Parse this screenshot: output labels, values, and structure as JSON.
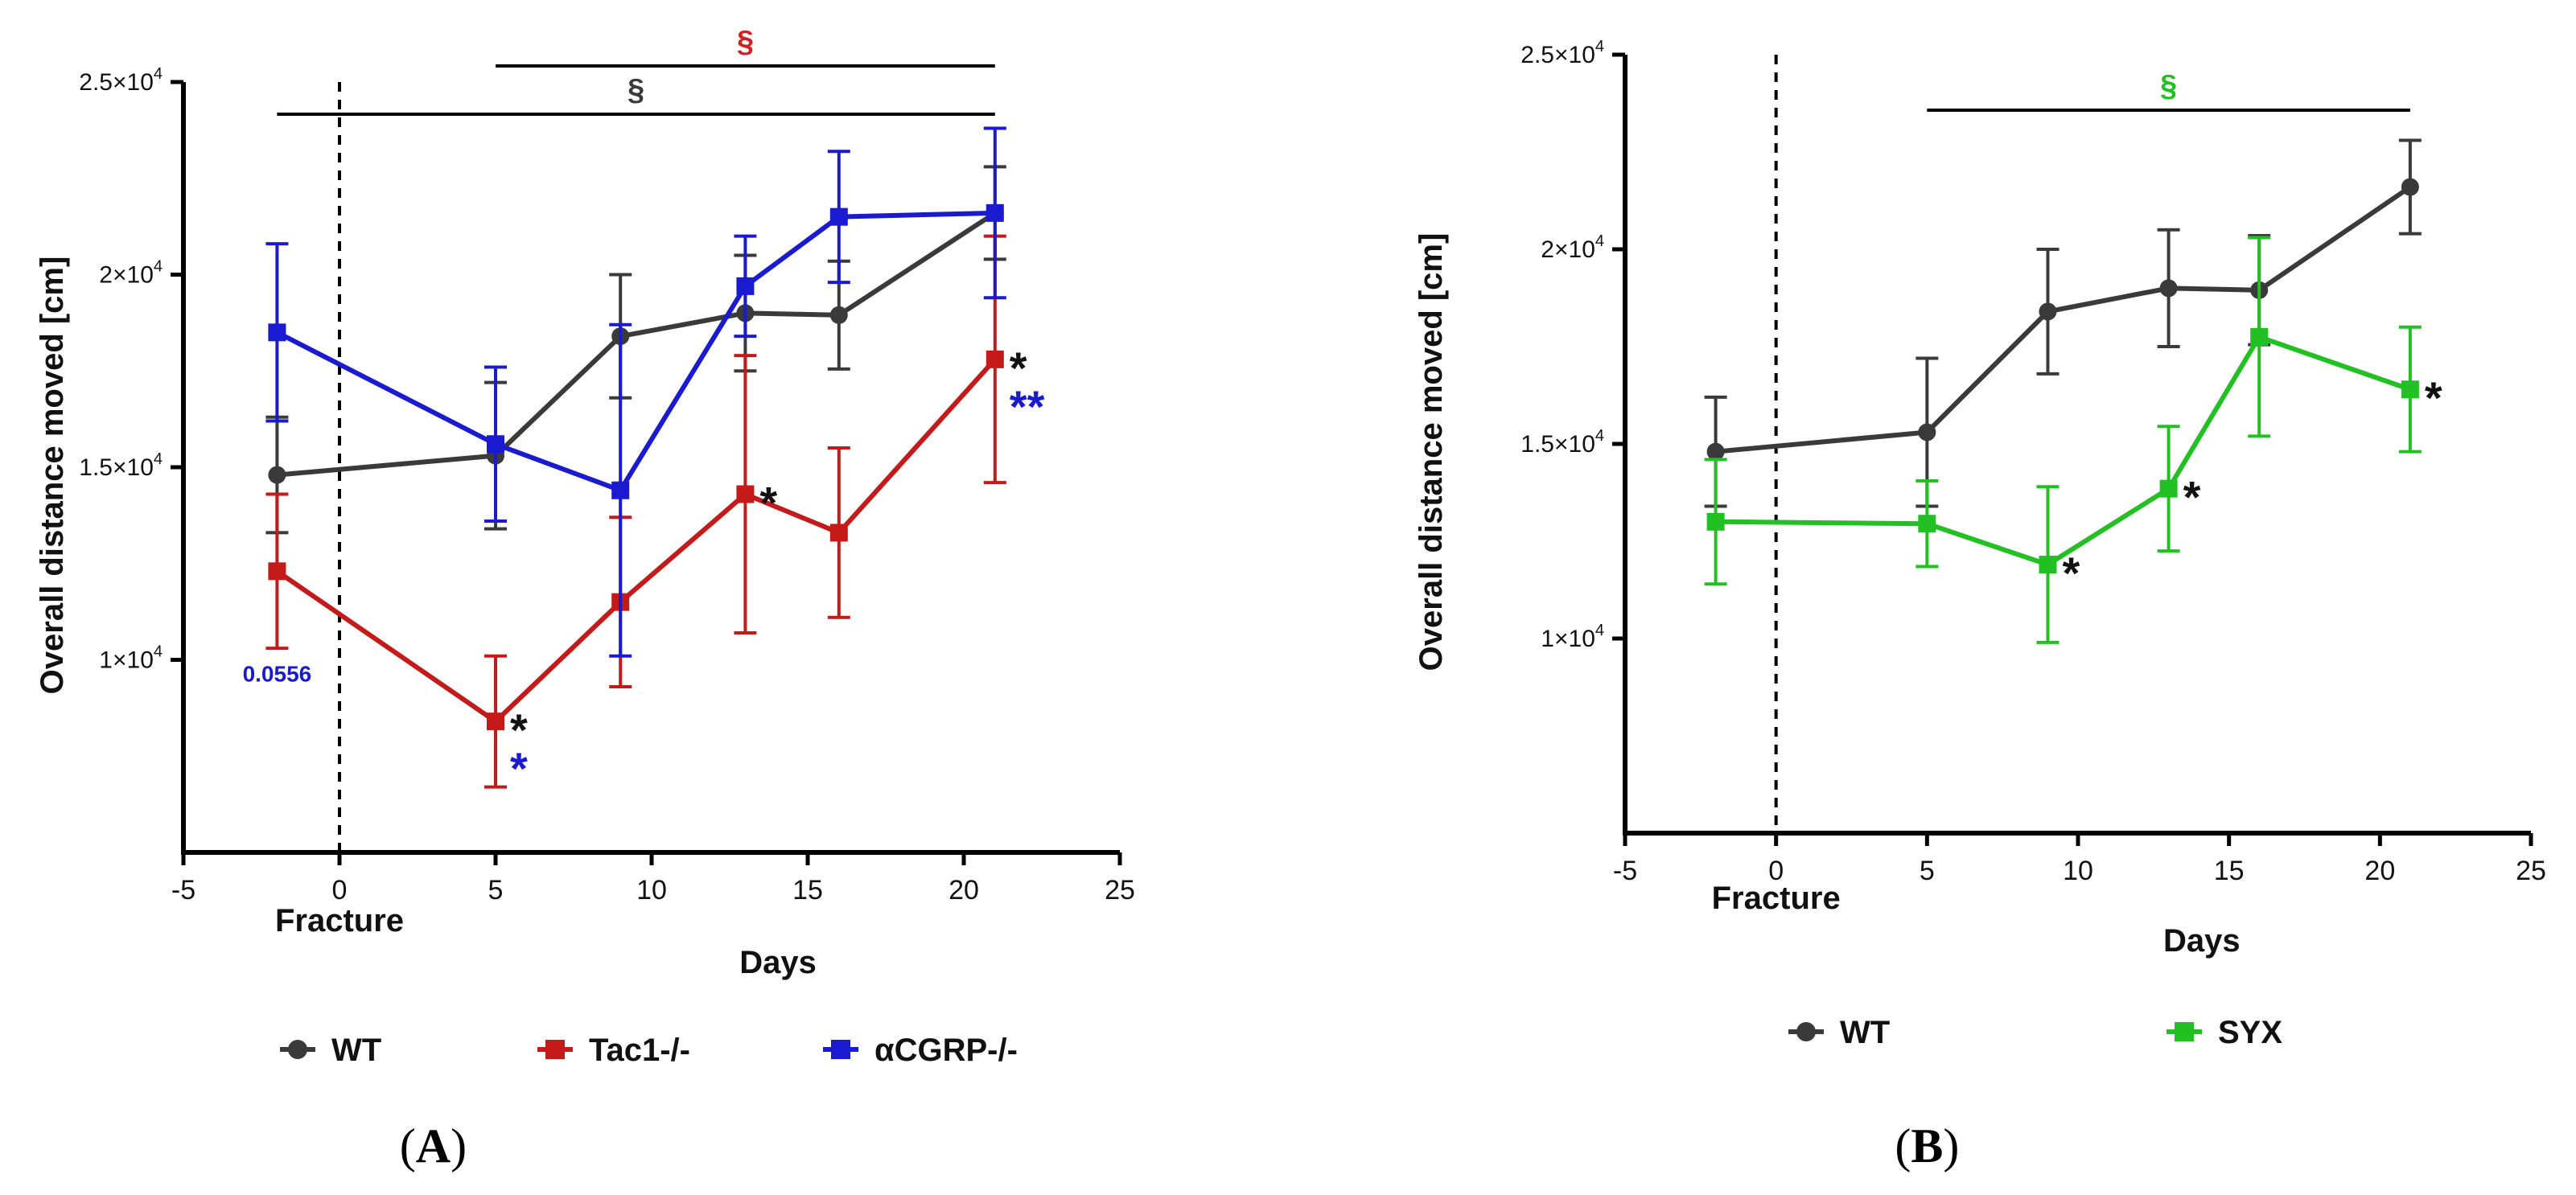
{
  "chart_data": [
    {
      "type": "line",
      "panel_label": "(A)",
      "panel_letter": "A",
      "xlabel": "Days",
      "ylabel": "Overall distance moved [cm]",
      "fracture_label": "Fracture",
      "xlim": [
        -5,
        25
      ],
      "ylim": [
        5000,
        25000
      ],
      "x_ticks": [
        -5,
        0,
        5,
        10,
        15,
        20,
        25
      ],
      "y_ticks": [
        {
          "value": 10000,
          "mantissa": "1",
          "exponent": "4"
        },
        {
          "value": 15000,
          "mantissa": "1.5",
          "exponent": "4"
        },
        {
          "value": 20000,
          "mantissa": "2",
          "exponent": "4"
        },
        {
          "value": 25000,
          "mantissa": "2.5",
          "exponent": "4"
        }
      ],
      "series": [
        {
          "name": "WT",
          "color": "#3a3a3a",
          "marker": "circle",
          "x": [
            -2,
            5,
            9,
            13,
            16,
            21
          ],
          "y": [
            14800,
            15300,
            18400,
            19000,
            18950,
            21600
          ],
          "err": [
            1500,
            1900,
            1600,
            1500,
            1400,
            1200
          ]
        },
        {
          "name": "Tac1-/-",
          "color": "#c41a1a",
          "marker": "square",
          "x": [
            -2,
            5,
            9,
            13,
            16,
            21
          ],
          "y": [
            12300,
            8400,
            11500,
            14300,
            13300,
            17800
          ],
          "err": [
            2000,
            1700,
            2200,
            3600,
            2200,
            3200
          ]
        },
        {
          "name": "αCGRP-/-",
          "color": "#1a1ad0",
          "marker": "square",
          "x": [
            -2,
            5,
            9,
            13,
            16,
            21
          ],
          "y": [
            18500,
            15600,
            14400,
            19700,
            21500,
            21600
          ],
          "err": [
            2300,
            2000,
            4300,
            1300,
            1700,
            2200
          ]
        }
      ],
      "significance_bars": [
        {
          "from": 5,
          "to": 21,
          "symbol": "§",
          "color": "#d32020"
        },
        {
          "from": -2,
          "to": 21,
          "symbol": "§",
          "color": "#3a3a3a"
        }
      ],
      "annotations": [
        {
          "text": "0.0556",
          "x": -2,
          "y": 9650,
          "color": "#1a1ad0"
        },
        {
          "text": "*",
          "x": 5,
          "y": 8400,
          "color": "#111111",
          "row": 0
        },
        {
          "text": "*",
          "x": 5,
          "y": 8400,
          "color": "#1a1ad0",
          "row": 1
        },
        {
          "text": "*",
          "x": 13,
          "y": 14300,
          "color": "#111111",
          "row": 0
        },
        {
          "text": "*",
          "x": 21,
          "y": 17800,
          "color": "#111111",
          "row": 0
        },
        {
          "text": "**",
          "x": 21,
          "y": 17800,
          "color": "#1a1ad0",
          "row": 1
        }
      ]
    },
    {
      "type": "line",
      "panel_label": "(B)",
      "panel_letter": "B",
      "xlabel": "Days",
      "ylabel": "Overall distance moved [cm]",
      "fracture_label": "Fracture",
      "xlim": [
        -5,
        25
      ],
      "ylim": [
        5000,
        25000
      ],
      "x_ticks": [
        -5,
        0,
        5,
        10,
        15,
        20,
        25
      ],
      "y_ticks": [
        {
          "value": 10000,
          "mantissa": "1",
          "exponent": "4"
        },
        {
          "value": 15000,
          "mantissa": "1.5",
          "exponent": "4"
        },
        {
          "value": 20000,
          "mantissa": "2",
          "exponent": "4"
        },
        {
          "value": 25000,
          "mantissa": "2.5",
          "exponent": "4"
        }
      ],
      "series": [
        {
          "name": "WT",
          "color": "#3a3a3a",
          "marker": "circle",
          "x": [
            -2,
            5,
            9,
            13,
            16,
            21
          ],
          "y": [
            14800,
            15300,
            18400,
            19000,
            18950,
            21600
          ],
          "err": [
            1400,
            1900,
            1600,
            1500,
            1400,
            1200
          ]
        },
        {
          "name": "SYX",
          "color": "#22c022",
          "marker": "square",
          "x": [
            -2,
            5,
            9,
            13,
            16,
            21
          ],
          "y": [
            13000,
            12950,
            11900,
            13850,
            17750,
            16400
          ],
          "err": [
            1600,
            1100,
            2000,
            1600,
            2550,
            1600
          ]
        }
      ],
      "significance_bars": [
        {
          "from": 5,
          "to": 21,
          "symbol": "§",
          "color": "#22c022"
        }
      ],
      "annotations": [
        {
          "text": "*",
          "x": 9,
          "y": 11900,
          "color": "#111111",
          "row": 0
        },
        {
          "text": "*",
          "x": 13,
          "y": 13850,
          "color": "#111111",
          "row": 0
        },
        {
          "text": "*",
          "x": 21,
          "y": 16400,
          "color": "#111111",
          "row": 0
        }
      ]
    }
  ]
}
